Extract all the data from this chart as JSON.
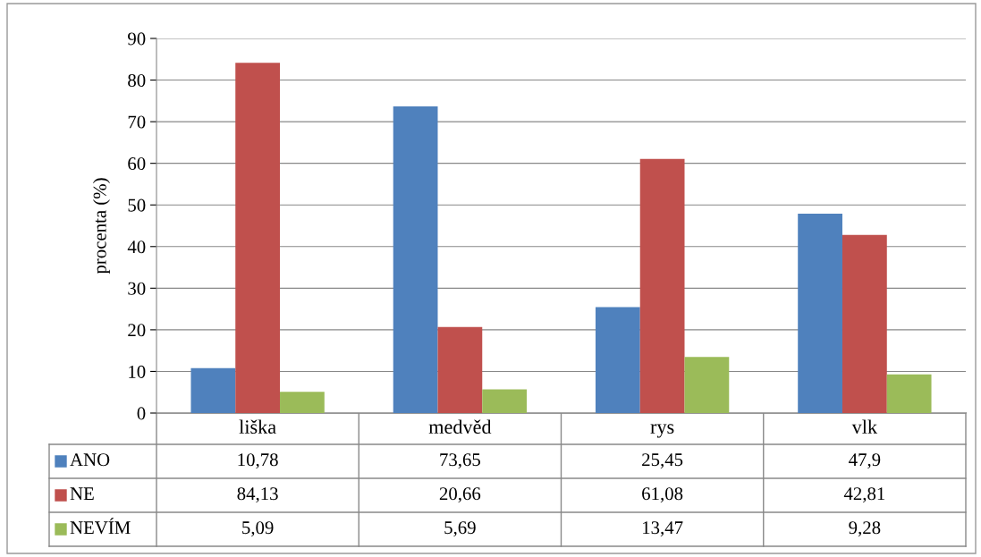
{
  "chart_data": {
    "type": "bar",
    "ylabel": "procenta (%)",
    "categories": [
      "liška",
      "medvěd",
      "rys",
      "vlk"
    ],
    "series": [
      {
        "name": "ANO",
        "color": "#4f81bd",
        "values": [
          10.78,
          73.65,
          25.45,
          47.9
        ],
        "value_labels": [
          "10,78",
          "73,65",
          "25,45",
          "47,9"
        ]
      },
      {
        "name": "NE",
        "color": "#c0504d",
        "values": [
          84.13,
          20.66,
          61.08,
          42.81
        ],
        "value_labels": [
          "84,13",
          "20,66",
          "61,08",
          "42,81"
        ]
      },
      {
        "name": "NEVÍM",
        "color": "#9bbb59",
        "values": [
          5.09,
          5.69,
          13.47,
          9.28
        ],
        "value_labels": [
          "5,09",
          "5,69",
          "13,47",
          "9,28"
        ]
      }
    ],
    "ylim": [
      0,
      90
    ],
    "yticks": [
      0,
      10,
      20,
      30,
      40,
      50,
      60,
      70,
      80,
      90
    ],
    "grid": "y",
    "legend": "bottom"
  }
}
